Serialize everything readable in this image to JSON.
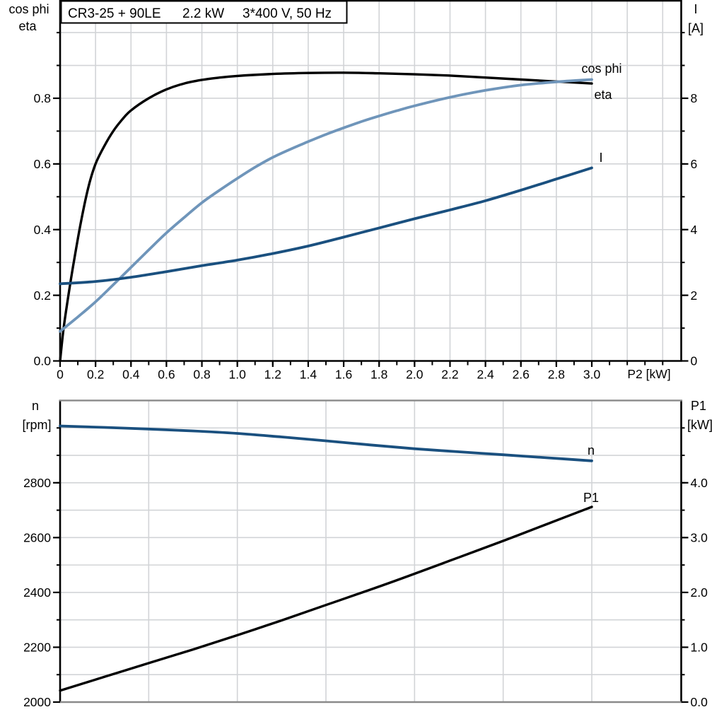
{
  "title_box": {
    "model": "CR3-25 + 90LE",
    "power": "2.2 kW",
    "supply": "3*400 V, 50 Hz"
  },
  "colors": {
    "black": "#000000",
    "light_blue": "#6f95ba",
    "dark_blue": "#1a507f",
    "grid": "#d2d4d7",
    "frame_gray": "#8a8a8a"
  },
  "chart_data": [
    {
      "id": "motor-electrical",
      "type": "line",
      "title": "CR3-25 + 90LE  2.2 kW  3*400 V, 50 Hz",
      "x_axis": {
        "label": "P2 [kW]",
        "min": 0,
        "max": 3.5,
        "grid_step": 0.2,
        "minor_tick_step": 0.1,
        "tick_values": [
          0,
          0.2,
          0.4,
          0.6,
          0.8,
          1.0,
          1.2,
          1.4,
          1.6,
          1.8,
          2.0,
          2.2,
          2.4,
          2.6,
          2.8,
          3.0
        ],
        "tick_labels": [
          "0",
          "0.2",
          "0.4",
          "0.6",
          "0.8",
          "1.0",
          "1.2",
          "1.4",
          "1.6",
          "1.8",
          "2.0",
          "2.2",
          "2.4",
          "2.6",
          "2.8",
          "3.0"
        ]
      },
      "y_left": {
        "label_lines": [
          "cos phi",
          "eta"
        ],
        "min": 0,
        "max": 1.1,
        "grid_step": 0.1,
        "tick_values": [
          0,
          0.2,
          0.4,
          0.6,
          0.8
        ],
        "tick_labels": [
          "0.0",
          "0.2",
          "0.4",
          "0.6",
          "0.8"
        ]
      },
      "y_right": {
        "label_lines": [
          "I",
          "[A]"
        ],
        "min": 0,
        "max": 11,
        "grid_step": 1,
        "tick_values": [
          0,
          2,
          4,
          6,
          8
        ],
        "tick_labels": [
          "0",
          "2",
          "4",
          "6",
          "8"
        ]
      },
      "series": [
        {
          "id": "eta",
          "name": "eta",
          "axis": "left",
          "color_key": "black",
          "points": [
            [
              0,
              0
            ],
            [
              0.02,
              0.1
            ],
            [
              0.05,
              0.21
            ],
            [
              0.08,
              0.31
            ],
            [
              0.12,
              0.43
            ],
            [
              0.16,
              0.53
            ],
            [
              0.2,
              0.6
            ],
            [
              0.25,
              0.655
            ],
            [
              0.3,
              0.7
            ],
            [
              0.35,
              0.735
            ],
            [
              0.4,
              0.763
            ],
            [
              0.5,
              0.8
            ],
            [
              0.6,
              0.827
            ],
            [
              0.7,
              0.845
            ],
            [
              0.8,
              0.856
            ],
            [
              0.9,
              0.863
            ],
            [
              1.0,
              0.868
            ],
            [
              1.2,
              0.874
            ],
            [
              1.4,
              0.877
            ],
            [
              1.6,
              0.878
            ],
            [
              1.8,
              0.876
            ],
            [
              2.0,
              0.873
            ],
            [
              2.2,
              0.869
            ],
            [
              2.4,
              0.863
            ],
            [
              2.6,
              0.857
            ],
            [
              2.8,
              0.851
            ],
            [
              3.0,
              0.845
            ]
          ]
        },
        {
          "id": "cos-phi",
          "name": "cos phi",
          "axis": "left",
          "color_key": "light_blue",
          "points": [
            [
              0,
              0.09
            ],
            [
              0.1,
              0.134
            ],
            [
              0.2,
              0.18
            ],
            [
              0.3,
              0.232
            ],
            [
              0.4,
              0.285
            ],
            [
              0.5,
              0.338
            ],
            [
              0.6,
              0.39
            ],
            [
              0.7,
              0.437
            ],
            [
              0.8,
              0.482
            ],
            [
              0.9,
              0.52
            ],
            [
              1.0,
              0.556
            ],
            [
              1.1,
              0.59
            ],
            [
              1.2,
              0.62
            ],
            [
              1.3,
              0.645
            ],
            [
              1.4,
              0.668
            ],
            [
              1.5,
              0.69
            ],
            [
              1.6,
              0.71
            ],
            [
              1.7,
              0.729
            ],
            [
              1.8,
              0.746
            ],
            [
              1.9,
              0.762
            ],
            [
              2.0,
              0.777
            ],
            [
              2.2,
              0.803
            ],
            [
              2.4,
              0.824
            ],
            [
              2.6,
              0.84
            ],
            [
              2.8,
              0.85
            ],
            [
              3.0,
              0.857
            ]
          ]
        },
        {
          "id": "current",
          "name": "I",
          "axis": "right",
          "color_key": "dark_blue",
          "points": [
            [
              0,
              2.35
            ],
            [
              0.2,
              2.42
            ],
            [
              0.4,
              2.55
            ],
            [
              0.6,
              2.72
            ],
            [
              0.8,
              2.9
            ],
            [
              1.0,
              3.07
            ],
            [
              1.2,
              3.27
            ],
            [
              1.4,
              3.5
            ],
            [
              1.6,
              3.77
            ],
            [
              1.8,
              4.05
            ],
            [
              2.0,
              4.33
            ],
            [
              2.2,
              4.6
            ],
            [
              2.4,
              4.88
            ],
            [
              2.6,
              5.2
            ],
            [
              2.8,
              5.54
            ],
            [
              3.0,
              5.88
            ]
          ]
        }
      ]
    },
    {
      "id": "motor-speed-power",
      "type": "line",
      "x_axis": {
        "label": "",
        "min": 0,
        "max": 3.5,
        "grid_step": 0.5,
        "minor_tick_step": 0,
        "tick_values": [],
        "tick_labels": []
      },
      "y_left": {
        "label_lines": [
          "n",
          "[rpm]"
        ],
        "min": 2000,
        "max": 3100,
        "grid_step": 100,
        "tick_values": [
          2000,
          2200,
          2400,
          2600,
          2800
        ],
        "tick_labels": [
          "2000",
          "2200",
          "2400",
          "2600",
          "2800"
        ]
      },
      "y_right": {
        "label_lines": [
          "P1",
          "[kW]"
        ],
        "min": 0,
        "max": 5.5,
        "grid_step": 0.5,
        "tick_values": [
          0,
          1,
          2,
          3,
          4
        ],
        "tick_labels": [
          "0.0",
          "1.0",
          "2.0",
          "3.0",
          "4.0"
        ]
      },
      "series": [
        {
          "id": "speed",
          "name": "n",
          "axis": "left",
          "color_key": "dark_blue",
          "points": [
            [
              0,
              3007
            ],
            [
              0.25,
              3002
            ],
            [
              0.5,
              2996
            ],
            [
              0.75,
              2989
            ],
            [
              1.0,
              2980
            ],
            [
              1.25,
              2967
            ],
            [
              1.5,
              2953
            ],
            [
              1.75,
              2938
            ],
            [
              2.0,
              2924
            ],
            [
              2.25,
              2913
            ],
            [
              2.5,
              2902
            ],
            [
              2.75,
              2891
            ],
            [
              3.0,
              2880
            ]
          ]
        },
        {
          "id": "input-power",
          "name": "P1",
          "axis": "right",
          "color_key": "black",
          "points": [
            [
              0,
              0.21
            ],
            [
              0.25,
              0.46
            ],
            [
              0.5,
              0.71
            ],
            [
              0.75,
              0.96
            ],
            [
              1.0,
              1.22
            ],
            [
              1.25,
              1.49
            ],
            [
              1.5,
              1.77
            ],
            [
              1.75,
              2.05
            ],
            [
              2.0,
              2.34
            ],
            [
              2.25,
              2.64
            ],
            [
              2.5,
              2.94
            ],
            [
              2.75,
              3.25
            ],
            [
              3.0,
              3.56
            ]
          ]
        }
      ]
    }
  ]
}
